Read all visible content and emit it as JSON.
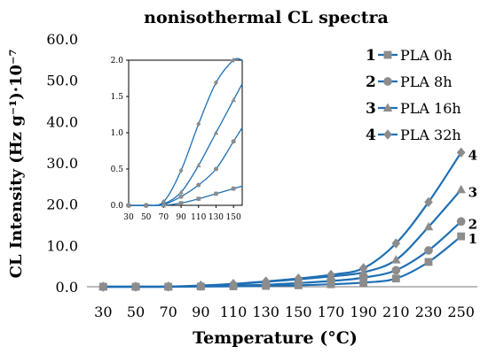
{
  "chart_data": [
    {
      "type": "line",
      "title": "nonisothermal CL spectra",
      "xlabel": "Temperature (°C)",
      "ylabel": "CL Intensity (Hz g⁻¹)·10⁻⁷",
      "x": [
        30,
        50,
        70,
        90,
        110,
        130,
        150,
        170,
        190,
        210,
        230,
        250
      ],
      "xticks": [
        "30",
        "50",
        "70",
        "90",
        "110",
        "130",
        "150",
        "170",
        "190",
        "210",
        "230",
        "250"
      ],
      "ylim": [
        0,
        60
      ],
      "yticks": [
        "0.0",
        "10.0",
        "20.0",
        "30.0",
        "40.0",
        "50.0",
        "60.0"
      ],
      "grid": false,
      "legend": "top-right",
      "series": [
        {
          "name": "PLA 0h",
          "number": "1",
          "marker": "square",
          "end_label": "1",
          "values": [
            0,
            0,
            0,
            0.05,
            0.1,
            0.2,
            0.35,
            0.6,
            1.0,
            2.0,
            6.0,
            12.2
          ]
        },
        {
          "name": "PLA 8h",
          "number": "2",
          "marker": "circle",
          "end_label": "2",
          "values": [
            0,
            0,
            0,
            0.1,
            0.3,
            0.5,
            0.9,
            1.4,
            2.2,
            4.0,
            8.8,
            15.8
          ]
        },
        {
          "name": "PLA 16h",
          "number": "3",
          "marker": "triangle",
          "end_label": "3",
          "values": [
            0,
            0,
            0,
            0.2,
            0.6,
            1.2,
            1.8,
            2.5,
            3.5,
            6.5,
            14.5,
            23.5
          ]
        },
        {
          "name": "PLA 32h",
          "number": "4",
          "marker": "diamond",
          "end_label": "4",
          "values": [
            0,
            0,
            0.05,
            0.3,
            0.7,
            1.3,
            2.0,
            2.9,
            4.5,
            10.5,
            20.5,
            32.5
          ]
        }
      ],
      "colors": {
        "line": "#1f6fb4",
        "marker": "#8c8c8c"
      }
    },
    {
      "type": "line",
      "inset": true,
      "x": [
        30,
        50,
        70,
        90,
        110,
        130,
        150
      ],
      "xticks": [
        "30",
        "50",
        "70",
        "90",
        "110",
        "130",
        "150"
      ],
      "xlim": [
        30,
        160
      ],
      "ylim": [
        0,
        2.0
      ],
      "yticks": [
        "0.0",
        "0.5",
        "1.0",
        "1.5",
        "2.0"
      ],
      "series": [
        {
          "name": "PLA 0h",
          "marker": "square",
          "values": [
            0,
            0,
            0,
            0.03,
            0.09,
            0.16,
            0.23
          ]
        },
        {
          "name": "PLA 8h",
          "marker": "circle",
          "values": [
            0,
            0,
            0.01,
            0.12,
            0.28,
            0.5,
            0.88
          ]
        },
        {
          "name": "PLA 16h",
          "marker": "triangle",
          "values": [
            0,
            0,
            0.02,
            0.18,
            0.55,
            1.0,
            1.45
          ]
        },
        {
          "name": "PLA 32h",
          "marker": "diamond",
          "values": [
            0,
            0,
            0.05,
            0.48,
            1.12,
            1.69,
            2.0
          ]
        }
      ]
    }
  ]
}
